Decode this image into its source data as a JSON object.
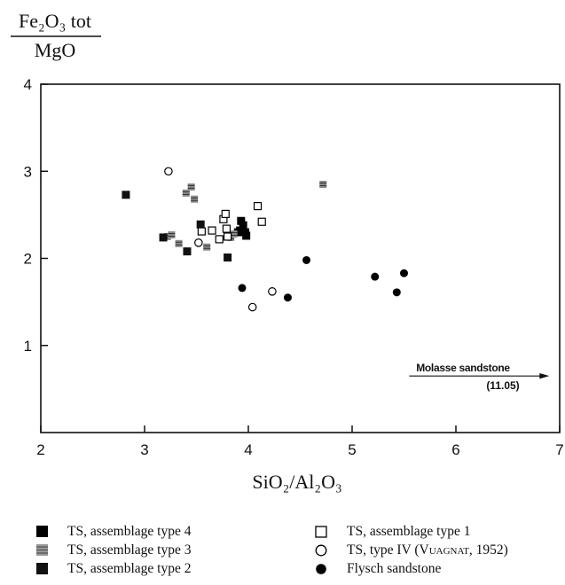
{
  "chart_data": {
    "type": "scatter",
    "ylabel_numerator": "Fe₂O₃ tot",
    "ylabel_denominator": "MgO",
    "xlabel": "SiO₂/Al₂O₃",
    "xlim": [
      2,
      7
    ],
    "ylim": [
      0,
      4
    ],
    "xticks": [
      "2",
      "3",
      "4",
      "5",
      "6",
      "7"
    ],
    "yticks": [
      "1",
      "2",
      "3",
      "4"
    ],
    "yticks_values": [
      1,
      2,
      3,
      4
    ],
    "annotation": {
      "label": "Molasse sandstone",
      "value": "(11.05)",
      "arrow_y": 0.65,
      "arrow_x_from": 5.55,
      "arrow_x_to": 6.9
    },
    "series": [
      {
        "name": "TS, assemblage type 4",
        "marker": "square-filled",
        "color": "#000000",
        "points": [
          [
            3.93,
            2.43
          ],
          [
            3.95,
            2.38
          ],
          [
            3.92,
            2.32
          ],
          [
            3.9,
            2.3
          ],
          [
            3.97,
            2.3
          ],
          [
            3.98,
            2.26
          ]
        ]
      },
      {
        "name": "TS, assemblage type 3",
        "marker": "square-gray",
        "color": "#555555",
        "points": [
          [
            3.22,
            2.25
          ],
          [
            3.26,
            2.27
          ],
          [
            3.33,
            2.17
          ],
          [
            3.4,
            2.75
          ],
          [
            3.45,
            2.82
          ],
          [
            3.48,
            2.68
          ],
          [
            3.6,
            2.13
          ],
          [
            3.83,
            2.24
          ],
          [
            3.86,
            2.28
          ],
          [
            4.72,
            2.85
          ]
        ]
      },
      {
        "name": "TS, assemblage type 2",
        "marker": "square-filled",
        "color": "#111111",
        "points": [
          [
            2.82,
            2.73
          ],
          [
            3.18,
            2.24
          ],
          [
            3.41,
            2.08
          ],
          [
            3.54,
            2.39
          ],
          [
            3.8,
            2.01
          ]
        ]
      },
      {
        "name": "TS, assemblage type 1",
        "marker": "square-open",
        "color": "#000000",
        "points": [
          [
            3.55,
            2.31
          ],
          [
            3.65,
            2.32
          ],
          [
            3.72,
            2.22
          ],
          [
            3.76,
            2.45
          ],
          [
            3.78,
            2.51
          ],
          [
            3.79,
            2.34
          ],
          [
            3.8,
            2.25
          ],
          [
            4.09,
            2.6
          ],
          [
            4.13,
            2.42
          ]
        ]
      },
      {
        "name": "TS, type IV",
        "name_ref": "(Vuagnat, 1952)",
        "marker": "circle-open",
        "color": "#000000",
        "points": [
          [
            3.23,
            3.0
          ],
          [
            3.52,
            2.18
          ],
          [
            4.04,
            1.44
          ],
          [
            4.23,
            1.62
          ]
        ]
      },
      {
        "name": "Flysch sandstone",
        "marker": "circle-filled",
        "color": "#000000",
        "points": [
          [
            3.94,
            1.66
          ],
          [
            4.38,
            1.55
          ],
          [
            4.56,
            1.98
          ],
          [
            5.22,
            1.79
          ],
          [
            5.43,
            1.61
          ],
          [
            5.5,
            1.83
          ]
        ]
      }
    ]
  },
  "legend": {
    "left": [
      {
        "label": "TS, assemblage type 4",
        "marker": "square-filled"
      },
      {
        "label": "TS, assemblage type 3",
        "marker": "square-gray"
      },
      {
        "label": "TS, assemblage type 2",
        "marker": "square-filled"
      }
    ],
    "right": [
      {
        "label": "TS, assemblage type 1",
        "marker": "square-open"
      },
      {
        "label": "TS, type IV",
        "ref": "(Vuagnat, 1952)",
        "marker": "circle-open"
      },
      {
        "label": "Flysch sandstone",
        "marker": "circle-filled"
      }
    ]
  }
}
